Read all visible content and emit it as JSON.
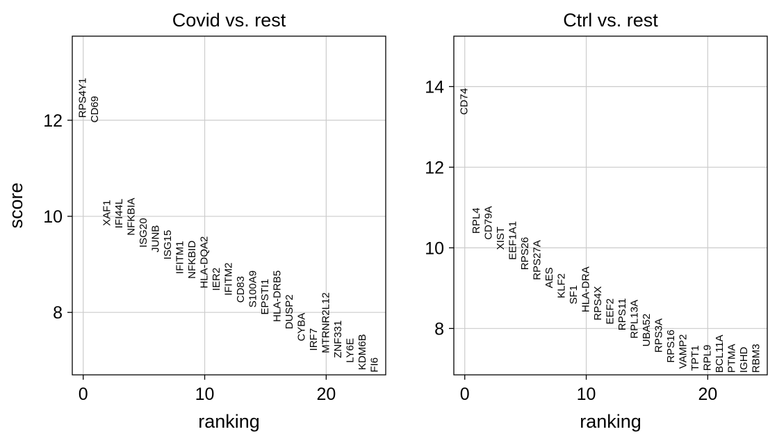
{
  "chart_data": [
    {
      "type": "scatter",
      "title": "Covid vs. rest",
      "xlabel": "ranking",
      "ylabel": "score",
      "xlim": [
        -0.9,
        24.9
      ],
      "ylim": [
        6.7,
        13.75
      ],
      "xticks": [
        0,
        10,
        20
      ],
      "yticks": [
        8,
        10,
        12
      ],
      "grid": true,
      "genes": [
        "RPS4Y1",
        "CD69",
        "XAF1",
        "IFI44L",
        "NFKBIA",
        "ISG20",
        "JUNB",
        "ISG15",
        "IFITM1",
        "NFKBID",
        "HLA-DQA2",
        "IER2",
        "IFITM2",
        "CD83",
        "S100A9",
        "EPSTI1",
        "HLA-DRB5",
        "DUSP2",
        "CYBA",
        "IRF7",
        "MTRNR2L12",
        "ZNF331",
        "LY6E",
        "KDM6B",
        "FI6"
      ],
      "scores": [
        12.05,
        11.95,
        9.8,
        9.75,
        9.6,
        9.35,
        9.25,
        9.1,
        8.8,
        8.7,
        8.5,
        8.45,
        8.35,
        8.2,
        8.1,
        7.95,
        7.8,
        7.65,
        7.4,
        7.2,
        7.15,
        7.05,
        6.95,
        6.8,
        6.75
      ]
    },
    {
      "type": "scatter",
      "title": "Ctrl vs. rest",
      "xlabel": "ranking",
      "ylabel": "",
      "xlim": [
        -0.9,
        24.9
      ],
      "ylim": [
        6.85,
        15.25
      ],
      "xticks": [
        0,
        10,
        20
      ],
      "yticks": [
        8,
        10,
        12,
        14
      ],
      "grid": true,
      "genes": [
        "CD74",
        "RPL4",
        "CD79A",
        "XIST",
        "EEF1A1",
        "RPS26",
        "RPS27A",
        "AES",
        "KLF2",
        "SF1",
        "HLA-DRA",
        "RPS4X",
        "EEF2",
        "RPS11",
        "RPL13A",
        "UBA52",
        "RPS3A",
        "RPS16",
        "VAMP2",
        "TPT1",
        "RPL9",
        "BCL11A",
        "PTMA",
        "IGHD",
        "RBM3"
      ],
      "scores": [
        13.3,
        10.35,
        10.2,
        9.95,
        9.7,
        9.45,
        9.2,
        9.0,
        8.75,
        8.6,
        8.4,
        8.2,
        8.1,
        7.95,
        7.75,
        7.55,
        7.4,
        7.15,
        7.0,
        6.95,
        6.95,
        6.9,
        6.9,
        6.9,
        6.9
      ]
    }
  ]
}
